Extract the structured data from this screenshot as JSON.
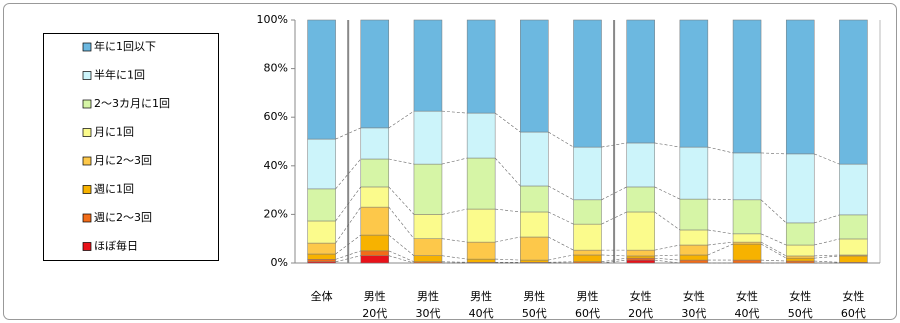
{
  "chart_data": {
    "type": "stacked_bar_100",
    "categories": [
      "全体",
      "男性\n20代",
      "男性\n30代",
      "男性\n40代",
      "男性\n50代",
      "男性\n60代",
      "女性\n20代",
      "女性\n30代",
      "女性\n40代",
      "女性\n50代",
      "女性\n60代"
    ],
    "series": [
      {
        "name": "ほぼ毎日",
        "color": "#e8121a",
        "values": [
          0.5,
          3,
          0,
          0,
          0,
          0,
          1.2,
          0,
          0,
          0,
          0
        ]
      },
      {
        "name": "週に2～3回",
        "color": "#f26c18",
        "values": [
          1.0,
          2,
          0.5,
          0.3,
          0.3,
          0.5,
          0.8,
          1.2,
          1.2,
          0.8,
          0.3
        ]
      },
      {
        "name": "週に1回",
        "color": "#f7b200",
        "values": [
          2.2,
          6.5,
          2.5,
          1.3,
          0.9,
          2.8,
          0.9,
          2.1,
          6.6,
          1.2,
          2.6
        ]
      },
      {
        "name": "月に2～3回",
        "color": "#fdc84a",
        "values": [
          4.5,
          11.5,
          7,
          7,
          9.5,
          2,
          2.4,
          4.1,
          0.8,
          0.9,
          0.4
        ]
      },
      {
        "name": "月に1回",
        "color": "#fbfb8c",
        "values": [
          9.1,
          8.3,
          10,
          13.6,
          10.3,
          10.7,
          15.7,
          6.2,
          3.4,
          4.5,
          6.6
        ]
      },
      {
        "name": "2～3カ月に1回",
        "color": "#d6f5a6",
        "values": [
          13.2,
          11.5,
          20.7,
          21,
          10.7,
          10,
          10.3,
          12.7,
          14,
          9.1,
          9.9
        ]
      },
      {
        "name": "半年に1回",
        "color": "#ccf4fa",
        "values": [
          20.5,
          12.8,
          21.8,
          18.5,
          22.2,
          21.7,
          18.1,
          21.4,
          19.3,
          28.4,
          20.9
        ]
      },
      {
        "name": "年に1回以下",
        "color": "#6cb8e0",
        "values": [
          49,
          44.4,
          37.5,
          38.3,
          46.1,
          52.3,
          50.6,
          52.3,
          54.7,
          55.1,
          59.3
        ]
      }
    ],
    "ylim": [
      0,
      100
    ],
    "yticks": [
      {
        "value": 0,
        "label": "0%"
      },
      {
        "value": 20,
        "label": "20%"
      },
      {
        "value": 40,
        "label": "40%"
      },
      {
        "value": 60,
        "label": "60%"
      },
      {
        "value": 80,
        "label": "80%"
      },
      {
        "value": 100,
        "label": "100%"
      }
    ],
    "legend": "left"
  }
}
